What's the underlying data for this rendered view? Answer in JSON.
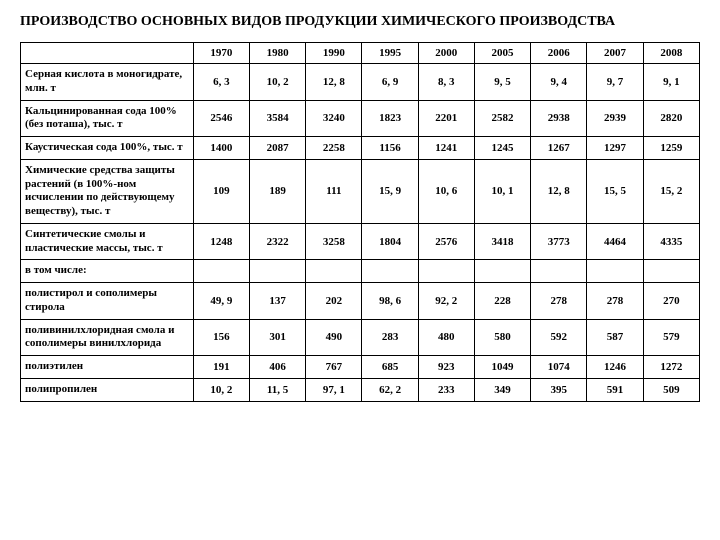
{
  "title": "ПРОИЗВОДСТВО ОСНОВНЫХ ВИДОВ ПРОДУКЦИИ ХИМИЧЕСКОГО ПРОИЗВОДСТВА",
  "table": {
    "columns": [
      "1970",
      "1980",
      "1990",
      "1995",
      "2000",
      "2005",
      "2006",
      "2007",
      "2008"
    ],
    "rows": [
      {
        "label": "Серная кислота в моногидрате, млн. т",
        "values": [
          "6, 3",
          "10, 2",
          "12, 8",
          "6, 9",
          "8, 3",
          "9, 5",
          "9, 4",
          "9, 7",
          "9, 1"
        ]
      },
      {
        "label": "Кальцинированная сода 100% (без поташа), тыс. т",
        "values": [
          "2546",
          "3584",
          "3240",
          "1823",
          "2201",
          "2582",
          "2938",
          "2939",
          "2820"
        ]
      },
      {
        "label": "Каустическая сода 100%, тыс. т",
        "values": [
          "1400",
          "2087",
          "2258",
          "1156",
          "1241",
          "1245",
          "1267",
          "1297",
          "1259"
        ]
      },
      {
        "label": "Химические средства защиты растений\n(в 100%-ном исчислении по действующему веществу), тыс. т",
        "values": [
          "109",
          "189",
          "111",
          "15, 9",
          "10, 6",
          "10, 1",
          "12, 8",
          "15, 5",
          "15, 2"
        ]
      },
      {
        "label": "Синтетические смолы и пластические\nмассы, тыс. т",
        "values": [
          "1248",
          "2322",
          "3258",
          "1804",
          "2576",
          "3418",
          "3773",
          "4464",
          "4335"
        ]
      },
      {
        "label": "в том числе:",
        "values": [
          "",
          "",
          "",
          "",
          "",
          "",
          "",
          "",
          ""
        ]
      },
      {
        "label": "полистирол и сополимеры стирола",
        "values": [
          "49, 9",
          "137",
          "202",
          "98, 6",
          "92, 2",
          "228",
          "278",
          "278",
          "270"
        ]
      },
      {
        "label": "поливинилхлоридная смола и сополимеры винилхлорида",
        "values": [
          "156",
          "301",
          "490",
          "283",
          "480",
          "580",
          "592",
          "587",
          "579"
        ]
      },
      {
        "label": "полиэтилен",
        "values": [
          "191",
          "406",
          "767",
          "685",
          "923",
          "1049",
          "1074",
          "1246",
          "1272"
        ]
      },
      {
        "label": "полипропилен",
        "values": [
          "10, 2",
          "11, 5",
          "97, 1",
          "62, 2",
          "233",
          "349",
          "395",
          "591",
          "509"
        ]
      }
    ]
  }
}
